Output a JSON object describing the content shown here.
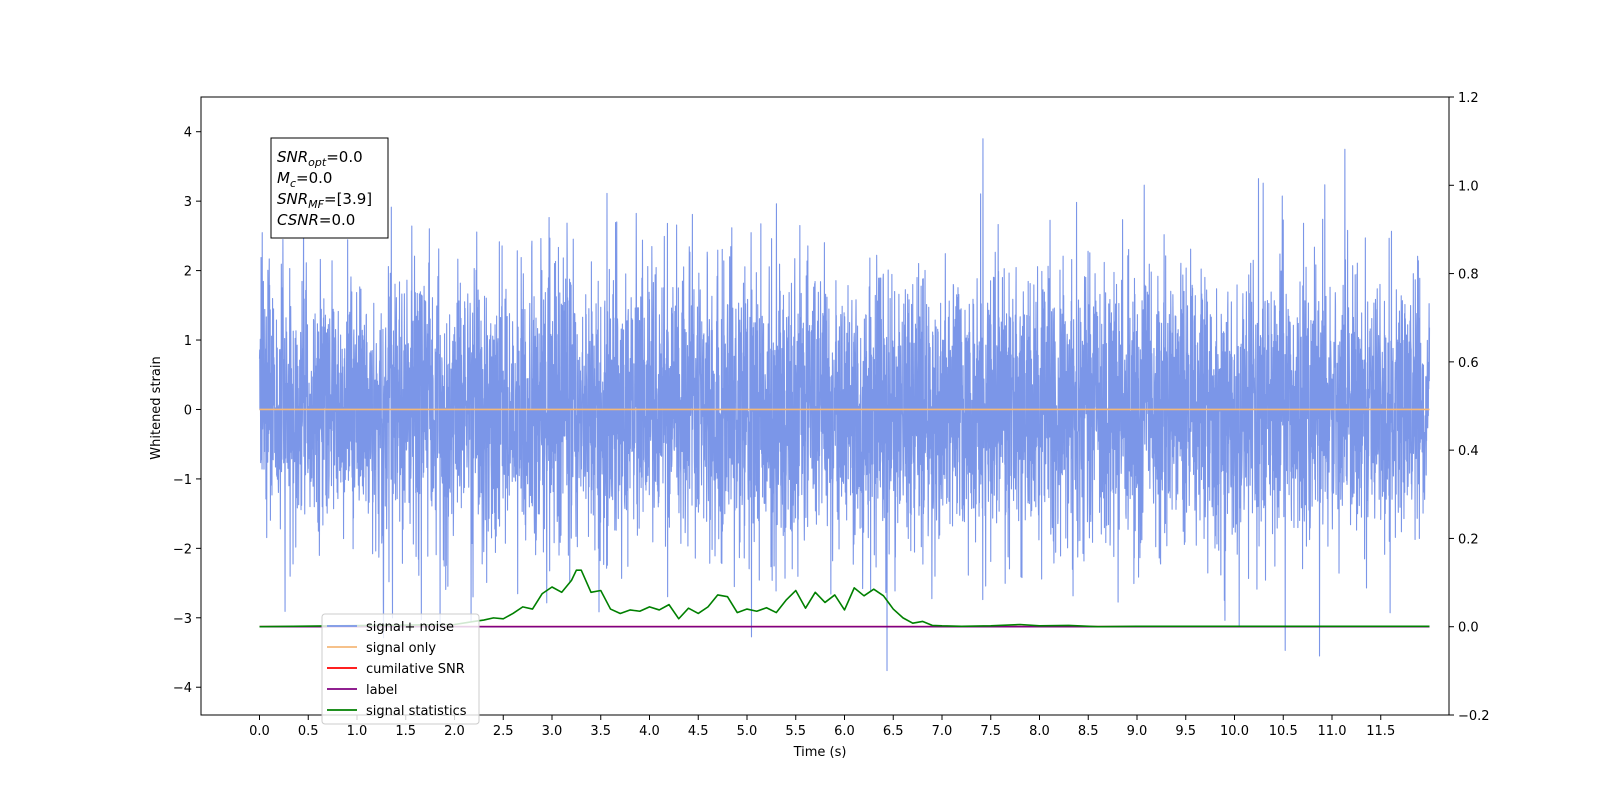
{
  "chart_data": {
    "type": "line",
    "title": "",
    "xlabel": "Time (s)",
    "ylabel": "Whitened strain",
    "xlim": [
      -0.6,
      12.2
    ],
    "ylim": [
      -4.4,
      4.5
    ],
    "ylim_right": [
      -0.2,
      1.2
    ],
    "x_ticks": [
      0.0,
      0.5,
      1.0,
      1.5,
      2.0,
      2.5,
      3.0,
      3.5,
      4.0,
      4.5,
      5.0,
      5.5,
      6.0,
      6.5,
      7.0,
      7.5,
      8.0,
      8.5,
      9.0,
      9.5,
      10.0,
      10.5,
      11.0,
      11.5
    ],
    "x_tick_labels": [
      "0.0",
      "0.5",
      "1.0",
      "1.5",
      "2.0",
      "2.5",
      "3.0",
      "3.5",
      "4.0",
      "4.5",
      "5.0",
      "5.5",
      "6.0",
      "6.5",
      "7.0",
      "7.5",
      "8.0",
      "8.5",
      "9.0",
      "9.5",
      "10.0",
      "10.5",
      "11.0",
      "11.5"
    ],
    "y_ticks": [
      -4,
      -3,
      -2,
      -1,
      0,
      1,
      2,
      3,
      4
    ],
    "y_tick_labels": [
      "−4",
      "−3",
      "−2",
      "−1",
      "0",
      "1",
      "2",
      "3",
      "4"
    ],
    "y_right_ticks": [
      -0.2,
      0.0,
      0.2,
      0.4,
      0.6,
      0.8,
      1.0,
      1.2
    ],
    "y_right_tick_labels": [
      "−0.2",
      "0.0",
      "0.2",
      "0.4",
      "0.6",
      "0.8",
      "1.0",
      "1.2"
    ],
    "grid": false,
    "legend_position": "bottom-left",
    "annotation": [
      {
        "base": "SNR",
        "sub": "opt",
        "value": "=0.0"
      },
      {
        "base": "M",
        "sub": "c",
        "value": "=0.0"
      },
      {
        "base": "SNR",
        "sub": "MF",
        "value": "=[3.9]"
      },
      {
        "base": "CSNR",
        "sub": "",
        "value": "=0.0"
      }
    ],
    "series": [
      {
        "name": "signal+ noise",
        "color": "#7b96e8",
        "axis": "left",
        "kind": "noise",
        "x_range": [
          0.0,
          12.0
        ],
        "y_range": [
          -3.95,
          4.12
        ],
        "note_sigma": 1.0
      },
      {
        "name": "signal only",
        "color": "#f4b87a",
        "axis": "left",
        "x": [
          0.0,
          12.0
        ],
        "y": [
          0.0,
          0.0
        ]
      },
      {
        "name": "cumilative SNR",
        "color": "#ff0000",
        "axis": "right",
        "x": [
          0.0,
          12.0
        ],
        "y": [
          0.0,
          0.0
        ]
      },
      {
        "name": "label",
        "color": "#800080",
        "axis": "right",
        "x": [
          0.0,
          12.0
        ],
        "y": [
          0.0,
          0.0
        ]
      },
      {
        "name": "signal statistics",
        "color": "#008000",
        "axis": "right",
        "x": [
          0.0,
          2.0,
          2.2,
          2.3,
          2.4,
          2.5,
          2.6,
          2.7,
          2.8,
          2.9,
          3.0,
          3.1,
          3.2,
          3.25,
          3.3,
          3.4,
          3.5,
          3.6,
          3.7,
          3.8,
          3.9,
          4.0,
          4.1,
          4.2,
          4.3,
          4.4,
          4.5,
          4.6,
          4.7,
          4.8,
          4.9,
          5.0,
          5.1,
          5.2,
          5.3,
          5.4,
          5.5,
          5.6,
          5.7,
          5.8,
          5.9,
          6.0,
          6.1,
          6.2,
          6.3,
          6.4,
          6.5,
          6.6,
          6.7,
          6.8,
          6.9,
          7.0,
          7.2,
          7.5,
          7.8,
          8.0,
          8.3,
          8.6,
          9.0,
          12.0
        ],
        "y": [
          0.0,
          0.005,
          0.012,
          0.015,
          0.02,
          0.018,
          0.03,
          0.045,
          0.04,
          0.075,
          0.09,
          0.078,
          0.105,
          0.128,
          0.128,
          0.078,
          0.082,
          0.04,
          0.03,
          0.038,
          0.035,
          0.045,
          0.038,
          0.05,
          0.018,
          0.042,
          0.03,
          0.045,
          0.072,
          0.068,
          0.032,
          0.04,
          0.035,
          0.043,
          0.032,
          0.06,
          0.082,
          0.042,
          0.078,
          0.055,
          0.072,
          0.038,
          0.088,
          0.07,
          0.085,
          0.07,
          0.04,
          0.02,
          0.008,
          0.012,
          0.003,
          0.002,
          0.001,
          0.002,
          0.005,
          0.002,
          0.003,
          0.0,
          0.001,
          0.001
        ]
      }
    ]
  }
}
